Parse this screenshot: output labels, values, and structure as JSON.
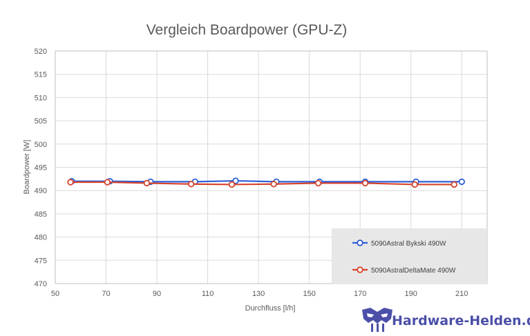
{
  "chart_data": {
    "type": "line",
    "title": "Vergleich Boardpower (GPU-Z)",
    "xlabel": "Durchfluss [l/h]",
    "ylabel": "Boardpower  [W]",
    "xlim": [
      50,
      220
    ],
    "ylim": [
      470,
      520
    ],
    "x_ticks": [
      50,
      70,
      90,
      110,
      130,
      150,
      170,
      190,
      210
    ],
    "y_ticks": [
      470,
      475,
      480,
      485,
      490,
      495,
      500,
      505,
      510,
      515,
      520
    ],
    "grid": true,
    "legend_position": "bottom-right",
    "series": [
      {
        "name": "5090Astral Bykski 490W",
        "color": "#2E5FD8",
        "x": [
          56.5,
          71.5,
          87.5,
          105,
          121,
          137,
          154,
          172,
          192,
          210
        ],
        "y": [
          492.0,
          492.0,
          491.9,
          491.9,
          492.1,
          491.9,
          491.9,
          491.9,
          491.9,
          491.9
        ]
      },
      {
        "name": "5090AstralDeltaMate 490W",
        "color": "#D6422A",
        "x": [
          56,
          70.5,
          86,
          103.5,
          119.5,
          136,
          153.5,
          172,
          191.5,
          207
        ],
        "y": [
          491.8,
          491.8,
          491.6,
          491.4,
          491.3,
          491.4,
          491.6,
          491.6,
          491.3,
          491.3
        ]
      }
    ]
  },
  "watermark": {
    "text": "Hardware-Helden.de",
    "color": "#4B4FA8"
  }
}
